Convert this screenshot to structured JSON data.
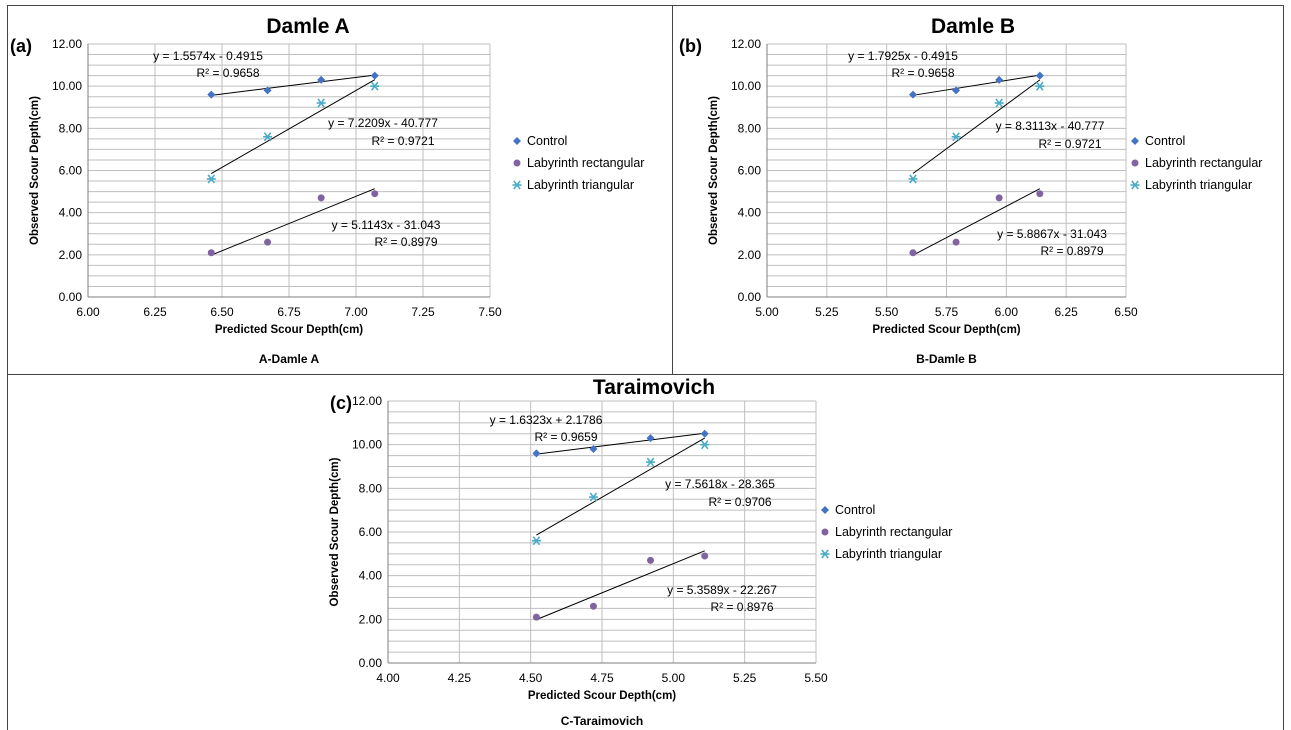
{
  "colors": {
    "control": "#4472C4",
    "labyrinth_rectangular": "#8064A2",
    "labyrinth_triangular": "#4BACC6",
    "gridline": "#bfbfbf",
    "trendline": "#000000"
  },
  "chart_data": [
    {
      "type": "scatter",
      "panel_label": "(a)",
      "title": "Damle A",
      "xlabel": "Predicted Scour Depth(cm)",
      "ylabel": "Observed Scour Depth(cm)",
      "caption": "A-Damle A",
      "xlim": [
        6.0,
        7.5
      ],
      "ylim": [
        0,
        12
      ],
      "xticks": [
        "6.00",
        "6.25",
        "6.50",
        "6.75",
        "7.00",
        "7.25",
        "7.50"
      ],
      "yticks": [
        "0.00",
        "2.00",
        "4.00",
        "6.00",
        "8.00",
        "10.00",
        "12.00"
      ],
      "grid": true,
      "legend_position": "right",
      "series": [
        {
          "name": "Control",
          "marker": "diamond",
          "x": [
            6.46,
            6.67,
            6.87,
            7.07
          ],
          "y": [
            9.6,
            9.8,
            10.3,
            10.5
          ],
          "trendline": "y = 1.5574x - 0.4915",
          "r2": "R² = 0.9658"
        },
        {
          "name": "Labyrinth rectangular",
          "marker": "circle",
          "x": [
            6.46,
            6.67,
            6.87,
            7.07
          ],
          "y": [
            2.1,
            2.6,
            4.7,
            4.9
          ],
          "trendline": "y = 5.1143x - 31.043",
          "r2": "R² = 0.8979"
        },
        {
          "name": "Labyrinth triangular",
          "marker": "star",
          "x": [
            6.46,
            6.67,
            6.87,
            7.07
          ],
          "y": [
            5.6,
            7.6,
            9.2,
            10.0
          ],
          "trendline": "y = 7.2209x - 40.777",
          "r2": "R² = 0.9721"
        }
      ]
    },
    {
      "type": "scatter",
      "panel_label": "(b)",
      "title": "Damle B",
      "xlabel": "Predicted Scour Depth(cm)",
      "ylabel": "Observed Scour Depth(cm)",
      "caption": "B-Damle B",
      "xlim": [
        5.0,
        6.5
      ],
      "ylim": [
        0,
        12
      ],
      "xticks": [
        "5.00",
        "5.25",
        "5.50",
        "5.75",
        "6.00",
        "6.25",
        "6.50"
      ],
      "yticks": [
        "0.00",
        "2.00",
        "4.00",
        "6.00",
        "8.00",
        "10.00",
        "12.00"
      ],
      "grid": true,
      "legend_position": "right",
      "series": [
        {
          "name": "Control",
          "marker": "diamond",
          "x": [
            5.61,
            5.79,
            5.97,
            6.14
          ],
          "y": [
            9.6,
            9.8,
            10.3,
            10.5
          ],
          "trendline": "y = 1.7925x - 0.4915",
          "r2": "R² = 0.9658"
        },
        {
          "name": "Labyrinth rectangular",
          "marker": "circle",
          "x": [
            5.61,
            5.79,
            5.97,
            6.14
          ],
          "y": [
            2.1,
            2.6,
            4.7,
            4.9
          ],
          "trendline": "y = 5.8867x - 31.043",
          "r2": "R² = 0.8979"
        },
        {
          "name": "Labyrinth triangular",
          "marker": "star",
          "x": [
            5.61,
            5.79,
            5.97,
            6.14
          ],
          "y": [
            5.6,
            7.6,
            9.2,
            10.0
          ],
          "trendline": "y = 8.3113x - 40.777",
          "r2": "R² = 0.9721"
        }
      ]
    },
    {
      "type": "scatter",
      "panel_label": "(c)",
      "title": "Taraimovich",
      "xlabel": "Predicted Scour Depth(cm)",
      "ylabel": "Observed Scour Depth(cm)",
      "caption": "C-Taraimovich",
      "xlim": [
        4.0,
        5.5
      ],
      "ylim": [
        0,
        12
      ],
      "xticks": [
        "4.00",
        "4.25",
        "4.50",
        "4.75",
        "5.00",
        "5.25",
        "5.50"
      ],
      "yticks": [
        "0.00",
        "2.00",
        "4.00",
        "6.00",
        "8.00",
        "10.00",
        "12.00"
      ],
      "grid": true,
      "legend_position": "right",
      "series": [
        {
          "name": "Control",
          "marker": "diamond",
          "x": [
            4.52,
            4.72,
            4.92,
            5.11
          ],
          "y": [
            9.6,
            9.8,
            10.3,
            10.5
          ],
          "trendline": "y = 1.6323x + 2.1786",
          "r2": "R² = 0.9659"
        },
        {
          "name": "Labyrinth rectangular",
          "marker": "circle",
          "x": [
            4.52,
            4.72,
            4.92,
            5.11
          ],
          "y": [
            2.1,
            2.6,
            4.7,
            4.9
          ],
          "trendline": "y = 5.3589x - 22.267",
          "r2": "R² = 0.8976"
        },
        {
          "name": "Labyrinth triangular",
          "marker": "star",
          "x": [
            4.52,
            4.72,
            4.92,
            5.11
          ],
          "y": [
            5.6,
            7.6,
            9.2,
            10.0
          ],
          "trendline": "y = 7.5618x - 28.365",
          "r2": "R² = 0.9706"
        }
      ]
    }
  ]
}
